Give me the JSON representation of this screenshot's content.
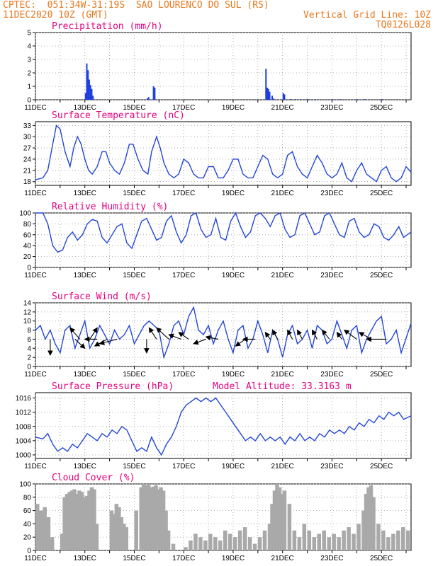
{
  "header": {
    "line1": "CPTEC:  051:34W-31:19S  SAO LOURENCO DO SUL (RS)",
    "line2_left": "11DEC2020 10Z (GMT)",
    "line2_right": "Vertical Grid Line: 10Z",
    "line3_right": "TQ0126L028"
  },
  "colors": {
    "header": "#e8781e",
    "title": "#e6007e",
    "line": "#2346d6",
    "bar": "#1f3ee0",
    "cloud": "#a9a9a9",
    "arrow": "#000000"
  },
  "x_categories": [
    "11DEC",
    "13DEC",
    "15DEC",
    "17DEC",
    "19DEC",
    "21DEC",
    "23DEC",
    "25DEC"
  ],
  "chart_data": [
    {
      "type": "bar",
      "title": "Precipitation (mm/h)",
      "ylim": [
        0,
        5
      ],
      "yticks": [
        0,
        1,
        2,
        3,
        4,
        5
      ],
      "x_label_unit": "day since 11DEC 10Z",
      "x": [
        2.0,
        2.05,
        2.1,
        2.15,
        2.2,
        2.25,
        2.3,
        4.5,
        4.55,
        4.75,
        4.8,
        9.3,
        9.35,
        9.4,
        9.45,
        9.55,
        9.6,
        10.0,
        10.05,
        10.3,
        10.5,
        10.7,
        11.0,
        11.3,
        12.0,
        12.3,
        13.0,
        13.3,
        14.0
      ],
      "values": [
        0.5,
        2.7,
        2.2,
        1.5,
        1.1,
        0.8,
        0.3,
        0.1,
        0.2,
        1.0,
        0.9,
        2.3,
        0.9,
        0.8,
        0.6,
        0.3,
        0.1,
        0.5,
        0.4,
        0.05,
        0.05,
        0.05,
        0.05,
        0.05,
        0.05,
        0.05,
        0.05,
        0.05,
        0.05
      ]
    },
    {
      "type": "line",
      "title": "Surface Temperature (nC)",
      "ylim": [
        17,
        34
      ],
      "yticks": [
        18,
        21,
        24,
        27,
        30,
        33
      ],
      "x": [
        0,
        0.3,
        0.5,
        0.7,
        0.85,
        1.0,
        1.2,
        1.4,
        1.55,
        1.7,
        1.85,
        2.0,
        2.15,
        2.3,
        2.5,
        2.7,
        2.85,
        3.0,
        3.2,
        3.4,
        3.6,
        3.8,
        3.95,
        4.15,
        4.35,
        4.55,
        4.7,
        4.9,
        5.05,
        5.2,
        5.4,
        5.6,
        5.8,
        6.0,
        6.2,
        6.4,
        6.6,
        6.8,
        7.0,
        7.2,
        7.4,
        7.6,
        7.8,
        8.0,
        8.2,
        8.4,
        8.6,
        8.8,
        9.0,
        9.2,
        9.4,
        9.6,
        9.8,
        10.0,
        10.2,
        10.4,
        10.6,
        10.8,
        11.0,
        11.2,
        11.4,
        11.6,
        11.8,
        12.0,
        12.2,
        12.4,
        12.6,
        12.8,
        13.0,
        13.2,
        13.4,
        13.6,
        13.8,
        14.0,
        14.2,
        14.4,
        14.6,
        14.8,
        15.0,
        15.2
      ],
      "values": [
        18.5,
        19,
        21,
        28,
        33,
        32,
        26,
        22,
        27,
        30,
        28,
        24,
        21,
        20,
        22,
        26,
        26,
        23,
        21,
        20,
        23,
        28,
        28,
        24,
        21,
        20,
        26,
        30,
        27,
        23,
        20,
        19,
        20,
        24,
        23,
        20,
        19,
        19,
        22,
        22,
        19,
        19,
        21,
        24,
        24,
        20,
        19,
        19,
        22,
        25,
        24,
        20,
        19,
        20,
        25,
        26,
        22,
        20,
        19,
        22,
        25,
        23,
        20,
        19,
        20,
        23,
        19,
        18,
        21,
        23,
        20,
        19,
        18,
        21,
        22,
        19,
        18,
        19,
        22,
        20.5
      ]
    },
    {
      "type": "line",
      "title": "Relative Humidity (%)",
      "ylim": [
        0,
        100
      ],
      "yticks": [
        0,
        20,
        40,
        60,
        80,
        100
      ],
      "x": [
        0,
        0.3,
        0.5,
        0.7,
        0.9,
        1.1,
        1.3,
        1.5,
        1.7,
        1.9,
        2.1,
        2.3,
        2.5,
        2.7,
        2.9,
        3.1,
        3.3,
        3.5,
        3.7,
        3.9,
        4.1,
        4.3,
        4.5,
        4.7,
        4.9,
        5.1,
        5.3,
        5.5,
        5.7,
        5.9,
        6.1,
        6.3,
        6.5,
        6.7,
        6.9,
        7.1,
        7.3,
        7.5,
        7.7,
        7.9,
        8.1,
        8.3,
        8.5,
        8.7,
        8.9,
        9.1,
        9.3,
        9.5,
        9.7,
        9.9,
        10.1,
        10.3,
        10.5,
        10.7,
        10.9,
        11.1,
        11.3,
        11.5,
        11.7,
        11.9,
        12.1,
        12.3,
        12.5,
        12.7,
        12.9,
        13.1,
        13.3,
        13.5,
        13.7,
        13.9,
        14.1,
        14.3,
        14.5,
        14.7,
        14.9,
        15.2
      ],
      "values": [
        100,
        100,
        80,
        40,
        28,
        32,
        55,
        65,
        50,
        60,
        80,
        88,
        85,
        55,
        45,
        60,
        75,
        80,
        45,
        35,
        60,
        85,
        90,
        70,
        50,
        55,
        85,
        95,
        65,
        45,
        60,
        95,
        100,
        70,
        55,
        60,
        90,
        55,
        50,
        85,
        100,
        75,
        55,
        65,
        95,
        100,
        90,
        75,
        95,
        100,
        70,
        55,
        60,
        95,
        100,
        80,
        60,
        65,
        95,
        100,
        80,
        60,
        55,
        85,
        90,
        65,
        55,
        60,
        80,
        75,
        55,
        50,
        60,
        75,
        55,
        65
      ]
    },
    {
      "type": "line",
      "title": "Surface Wind (m/s)",
      "ylim": [
        0,
        14
      ],
      "yticks": [
        0,
        2,
        4,
        6,
        8,
        10,
        12,
        14
      ],
      "x": [
        0,
        0.2,
        0.4,
        0.6,
        0.8,
        1.0,
        1.2,
        1.4,
        1.6,
        1.8,
        2.0,
        2.2,
        2.4,
        2.6,
        2.8,
        3.0,
        3.2,
        3.4,
        3.6,
        3.8,
        4.0,
        4.2,
        4.4,
        4.6,
        4.8,
        5.0,
        5.2,
        5.4,
        5.6,
        5.8,
        6.0,
        6.2,
        6.4,
        6.6,
        6.8,
        7.0,
        7.2,
        7.4,
        7.6,
        7.8,
        8.0,
        8.2,
        8.4,
        8.6,
        8.8,
        9.0,
        9.2,
        9.4,
        9.6,
        9.8,
        10.0,
        10.2,
        10.4,
        10.6,
        10.8,
        11.0,
        11.2,
        11.4,
        11.6,
        11.8,
        12.0,
        12.2,
        12.4,
        12.6,
        12.8,
        13.0,
        13.2,
        13.4,
        13.6,
        13.8,
        14.0,
        14.2,
        14.4,
        14.6,
        14.8,
        15.2
      ],
      "values": [
        8,
        9,
        6,
        8,
        5,
        3,
        8,
        9,
        4,
        7,
        10,
        4,
        6,
        9,
        7,
        5,
        8,
        6,
        7,
        9,
        5,
        7,
        9,
        10,
        9,
        8,
        2,
        5,
        9,
        10,
        7,
        11,
        13,
        8,
        7,
        9,
        5,
        8,
        10,
        6,
        3,
        8,
        9,
        4,
        6,
        10,
        7,
        3,
        8,
        6,
        2,
        7,
        9,
        5,
        6,
        8,
        4,
        9,
        8,
        5,
        6,
        10,
        7,
        4,
        8,
        9,
        3,
        6,
        8,
        10,
        11,
        5,
        6,
        8,
        3,
        9.5
      ],
      "arrows": [
        {
          "x": 0.6,
          "ddx": 0.0,
          "ddy": -3.5
        },
        {
          "x": 1.6,
          "ddx": 0.4,
          "ddy": -2.0
        },
        {
          "x": 1.8,
          "ddx": -0.4,
          "ddy": 2.5
        },
        {
          "x": 2.2,
          "ddx": 0.3,
          "ddy": 2.5
        },
        {
          "x": 2.5,
          "ddx": -0.5,
          "ddy": 0.0
        },
        {
          "x": 2.9,
          "ddx": -0.5,
          "ddy": -1.5
        },
        {
          "x": 3.3,
          "ddx": -0.7,
          "ddy": -1.0
        },
        {
          "x": 4.5,
          "ddx": 0.0,
          "ddy": -3.0
        },
        {
          "x": 4.9,
          "ddx": -0.3,
          "ddy": 2.5
        },
        {
          "x": 5.4,
          "ddx": -0.5,
          "ddy": 2.5
        },
        {
          "x": 5.9,
          "ddx": -0.5,
          "ddy": 1.0
        },
        {
          "x": 6.2,
          "ddx": -0.4,
          "ddy": 1.5
        },
        {
          "x": 6.9,
          "ddx": -0.5,
          "ddy": -1.0
        },
        {
          "x": 7.4,
          "ddx": -0.5,
          "ddy": 0.5
        },
        {
          "x": 8.5,
          "ddx": -0.4,
          "ddy": -1.5
        },
        {
          "x": 8.9,
          "ddx": -0.5,
          "ddy": 0.0
        },
        {
          "x": 9.5,
          "ddx": -0.2,
          "ddy": 1.5
        },
        {
          "x": 9.8,
          "ddx": -0.2,
          "ddy": 2.0
        },
        {
          "x": 10.4,
          "ddx": -0.2,
          "ddy": 2.0
        },
        {
          "x": 10.8,
          "ddx": -0.2,
          "ddy": 2.0
        },
        {
          "x": 11.4,
          "ddx": -0.2,
          "ddy": 2.0
        },
        {
          "x": 11.9,
          "ddx": -0.3,
          "ddy": 2.0
        },
        {
          "x": 12.4,
          "ddx": -0.2,
          "ddy": 1.5
        },
        {
          "x": 13.0,
          "ddx": -0.5,
          "ddy": 2.0
        },
        {
          "x": 13.6,
          "ddx": -0.5,
          "ddy": 1.5
        },
        {
          "x": 14.2,
          "ddx": -0.8,
          "ddy": 0.0
        }
      ]
    },
    {
      "type": "line",
      "title": "Surface Pressure (hPa)",
      "annotation": "Model Altitude: 33.3163 m",
      "ylim": [
        999,
        1017.5
      ],
      "yticks": [
        1000,
        1004,
        1008,
        1012,
        1016
      ],
      "x": [
        0,
        0.3,
        0.5,
        0.7,
        0.9,
        1.1,
        1.3,
        1.5,
        1.7,
        1.9,
        2.1,
        2.3,
        2.5,
        2.7,
        2.9,
        3.1,
        3.3,
        3.5,
        3.7,
        3.9,
        4.1,
        4.3,
        4.5,
        4.7,
        4.9,
        5.1,
        5.3,
        5.5,
        5.7,
        5.9,
        6.1,
        6.3,
        6.5,
        6.7,
        6.9,
        7.1,
        7.3,
        7.5,
        7.7,
        7.9,
        8.1,
        8.3,
        8.5,
        8.7,
        8.9,
        9.1,
        9.3,
        9.5,
        9.7,
        9.9,
        10.1,
        10.3,
        10.5,
        10.7,
        10.9,
        11.1,
        11.3,
        11.5,
        11.7,
        11.9,
        12.1,
        12.3,
        12.5,
        12.7,
        12.9,
        13.1,
        13.3,
        13.5,
        13.7,
        13.9,
        14.1,
        14.3,
        14.5,
        14.7,
        14.9,
        15.2
      ],
      "values": [
        1005,
        1004.5,
        1006,
        1003,
        1001,
        1002,
        1001,
        1003,
        1002,
        1004,
        1006,
        1005,
        1004,
        1006,
        1005,
        1007,
        1006,
        1008,
        1007,
        1004,
        1001,
        1002,
        1001,
        1005,
        1002,
        1000,
        1003,
        1005,
        1008,
        1012,
        1014,
        1015,
        1016,
        1015,
        1016,
        1015,
        1016,
        1014,
        1012,
        1010,
        1008,
        1006,
        1004,
        1005,
        1004,
        1006,
        1004,
        1005,
        1004,
        1005,
        1003,
        1005,
        1004,
        1006,
        1004,
        1005,
        1004,
        1006,
        1005,
        1007,
        1006,
        1007,
        1006,
        1008,
        1007,
        1009,
        1008,
        1010,
        1009,
        1011,
        1010,
        1012,
        1011,
        1012,
        1010,
        1011
      ]
    },
    {
      "type": "bar",
      "title": "Cloud Cover (%)",
      "ylim": [
        0,
        100
      ],
      "yticks": [
        0,
        20,
        40,
        60,
        80,
        100
      ],
      "x": [
        0,
        0.15,
        0.3,
        0.45,
        0.6,
        1.0,
        1.1,
        1.2,
        1.3,
        1.4,
        1.5,
        1.6,
        1.7,
        1.8,
        1.9,
        2.0,
        2.1,
        2.2,
        2.3,
        2.4,
        3.0,
        3.1,
        3.2,
        3.3,
        3.4,
        3.5,
        3.6,
        4.0,
        4.2,
        4.3,
        4.4,
        4.5,
        4.6,
        4.7,
        4.8,
        4.9,
        5.0,
        5.1,
        5.2,
        5.3,
        5.5,
        6.0,
        6.2,
        6.4,
        6.6,
        6.8,
        7.0,
        7.2,
        7.4,
        7.6,
        7.8,
        8.0,
        8.2,
        8.4,
        8.6,
        8.8,
        9.0,
        9.2,
        9.4,
        9.5,
        9.6,
        9.7,
        9.8,
        9.9,
        10.0,
        10.2,
        10.4,
        10.6,
        10.8,
        11.0,
        11.2,
        11.4,
        11.6,
        11.8,
        12.0,
        12.2,
        12.4,
        12.6,
        12.8,
        13.0,
        13.2,
        13.3,
        13.4,
        13.5,
        13.6,
        13.8,
        14.0,
        14.2,
        14.4,
        14.6,
        14.8,
        15.0
      ],
      "values": [
        70,
        60,
        65,
        50,
        20,
        25,
        80,
        85,
        88,
        90,
        92,
        85,
        90,
        88,
        80,
        82,
        90,
        95,
        92,
        40,
        60,
        55,
        70,
        65,
        50,
        40,
        35,
        60,
        95,
        100,
        98,
        100,
        95,
        96,
        98,
        92,
        95,
        90,
        60,
        30,
        10,
        5,
        15,
        25,
        20,
        15,
        25,
        20,
        15,
        30,
        25,
        20,
        30,
        35,
        20,
        10,
        20,
        30,
        40,
        70,
        90,
        100,
        95,
        85,
        90,
        70,
        30,
        20,
        40,
        30,
        20,
        25,
        30,
        20,
        25,
        20,
        30,
        35,
        25,
        40,
        60,
        85,
        95,
        98,
        80,
        40,
        30,
        20,
        25,
        30,
        35,
        30
      ]
    }
  ]
}
